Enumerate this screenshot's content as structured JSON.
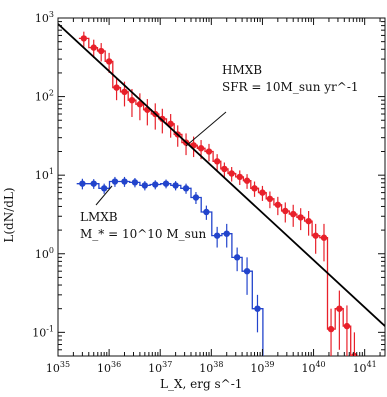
{
  "chart_data": {
    "type": "line",
    "xlabel": "L_X, erg s^-1",
    "ylabel": "L(dN/dL)",
    "x_scale": "log",
    "y_scale": "log",
    "xlim": [
      1e+35,
      2.5e+41
    ],
    "ylim": [
      0.05,
      1000
    ],
    "x_ticks": [
      {
        "value": 1e+35,
        "label": "10^35"
      },
      {
        "value": 1e+36,
        "label": "10^36"
      },
      {
        "value": 1e+37,
        "label": "10^37"
      },
      {
        "value": 1e+38,
        "label": "10^38"
      },
      {
        "value": 1e+39,
        "label": "10^39"
      },
      {
        "value": 1e+40,
        "label": "10^40"
      },
      {
        "value": 1e+41,
        "label": "10^41"
      }
    ],
    "y_ticks": [
      {
        "value": 0.1,
        "label": "10^-1"
      },
      {
        "value": 1,
        "label": "10^0"
      },
      {
        "value": 10,
        "label": "10^1"
      },
      {
        "value": 100,
        "label": "10^2"
      },
      {
        "value": 1000,
        "label": "10^3"
      }
    ],
    "series": [
      {
        "color": "#e8202a",
        "style": "step-with-errorbars",
        "x": [
          3.2e+35,
          5e+35,
          7e+35,
          1e+36,
          1.4e+36,
          2e+36,
          2.8e+36,
          4e+36,
          5.6e+36,
          8e+36,
          1.1e+37,
          1.6e+37,
          2.2e+37,
          3.2e+37,
          4.5e+37,
          6.3e+37,
          9e+37,
          1.3e+38,
          1.8e+38,
          2.5e+38,
          3.6e+38,
          5e+38,
          7e+38,
          1e+39,
          1.4e+39,
          2e+39,
          2.8e+39,
          4e+39,
          5.6e+39,
          8e+39,
          1.1e+40,
          1.6e+40,
          2.2e+40,
          3.2e+40,
          4.5e+40,
          6.3e+40
        ],
        "y": [
          550,
          420,
          380,
          280,
          130,
          115,
          90,
          80,
          68,
          60,
          52,
          45,
          33,
          26,
          24,
          22,
          20,
          15,
          12,
          10.5,
          9.5,
          8.5,
          6.8,
          6,
          5,
          4.2,
          3.5,
          3.2,
          2.9,
          2.6,
          1.7,
          1.6,
          0.11,
          0.2,
          0.12,
          0.05
        ],
        "yerr": [
          120,
          110,
          100,
          80,
          40,
          40,
          35,
          30,
          25,
          22,
          18,
          15,
          10,
          8,
          7,
          6,
          5,
          3.5,
          2.5,
          2.2,
          2,
          1.8,
          1.5,
          1.3,
          1.2,
          1.1,
          1,
          1,
          0.9,
          0.9,
          0.7,
          0.8,
          0.09,
          0.14,
          0.1,
          0.05
        ]
      },
      {
        "color": "#2244cc",
        "style": "step-with-errorbars",
        "x": [
          3e+35,
          5e+35,
          8e+35,
          1.3e+36,
          2e+36,
          3.2e+36,
          5e+36,
          8e+36,
          1.3e+37,
          2e+37,
          3.2e+37,
          5e+37,
          8e+37,
          1.3e+38,
          2e+38,
          3.2e+38,
          5e+38,
          8e+38,
          1.3e+39
        ],
        "y": [
          7.8,
          7.8,
          6.8,
          8.3,
          8.3,
          8.1,
          7.4,
          7.6,
          7.8,
          7.4,
          6.8,
          5.2,
          3.4,
          1.7,
          1.8,
          0.9,
          0.6,
          0.2,
          0.03
        ],
        "yerr": [
          1.2,
          1.1,
          1.0,
          1.2,
          1.2,
          1.1,
          1.0,
          1.0,
          1.0,
          1.0,
          1.0,
          0.9,
          0.7,
          0.5,
          0.6,
          0.3,
          0.3,
          0.1,
          0.02
        ]
      }
    ],
    "fit_line": {
      "color": "#000000",
      "points": [
        [
          1e+35,
          840
        ],
        [
          2.5e+41,
          0.12
        ]
      ]
    },
    "annotations": {
      "hmxb": {
        "name": "HMXB",
        "detail": "SFR = 10M_sun yr^-1"
      },
      "lmxb": {
        "name": "LMXB",
        "detail": "M_* = 10^10 M_sun"
      }
    }
  }
}
